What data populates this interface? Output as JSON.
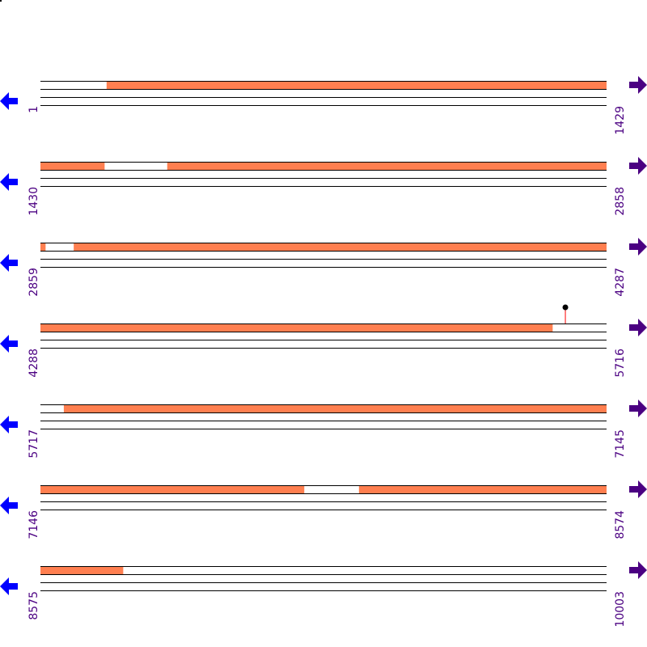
{
  "map": {
    "sequence_length": 10003,
    "bp_per_row": 1429,
    "rows": [
      {
        "start": "1",
        "end": "1429"
      },
      {
        "start": "1430",
        "end": "2858"
      },
      {
        "start": "2859",
        "end": "4287"
      },
      {
        "start": "4288",
        "end": "5716"
      },
      {
        "start": "5717",
        "end": "7145"
      },
      {
        "start": "7146",
        "end": "8574"
      },
      {
        "start": "8575",
        "end": "10003"
      }
    ],
    "features": [
      {
        "start": 168,
        "end": 1591
      },
      {
        "start": 1750,
        "end": 2871
      },
      {
        "start": 2943,
        "end": 5580
      },
      {
        "start": 5776,
        "end": 7811
      },
      {
        "start": 7950,
        "end": 8783
      }
    ],
    "markers": [
      {
        "position": 5613
      }
    ],
    "colors": {
      "feature": "#ff7f50",
      "label": "#4b0082",
      "left_arrow": "#0000ff",
      "right_arrow": "#4b0082",
      "marker_stem": "#ff0000",
      "marker_head": "#000000"
    },
    "icons": {
      "left": "arrow-left-icon",
      "right": "arrow-right-icon"
    }
  }
}
